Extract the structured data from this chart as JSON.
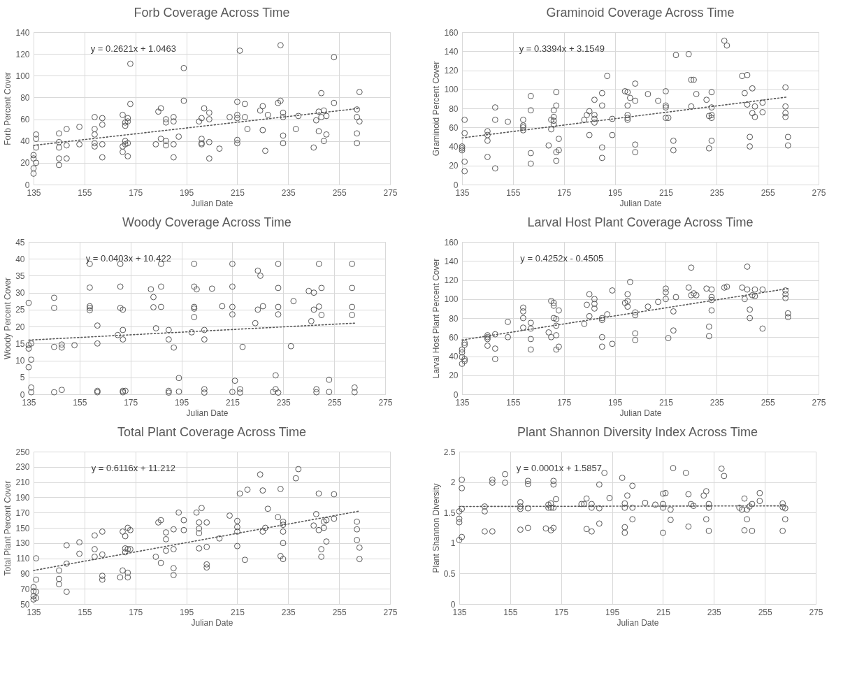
{
  "chart_data": [
    {
      "type": "scatter",
      "title": "Forb Coverage Across Time",
      "xlabel": "Julian Date",
      "ylabel": "Forb Percent Cover",
      "xlim": [
        135,
        275
      ],
      "xticks": [
        135,
        155,
        175,
        195,
        215,
        235,
        255,
        275
      ],
      "ylim": [
        0,
        140
      ],
      "yticks": [
        0,
        20,
        40,
        60,
        80,
        100,
        120,
        140
      ],
      "grid": true,
      "annotations": [
        "y = 0.2621x + 1.0463"
      ],
      "series": [
        {
          "marker": "circle",
          "color": "#595959",
          "x": [
            135,
            135,
            135,
            135,
            136,
            136,
            136,
            136,
            145,
            145,
            145,
            145,
            145,
            148,
            148,
            148,
            153,
            153,
            159,
            159,
            159,
            159,
            159,
            162,
            162,
            162,
            162,
            170,
            170,
            170,
            171,
            171,
            171,
            171,
            172,
            172,
            172,
            172,
            173,
            173,
            183,
            184,
            185,
            185,
            187,
            187,
            187,
            187,
            190,
            190,
            190,
            190,
            192,
            194,
            194,
            200,
            201,
            201,
            201,
            201,
            202,
            204,
            204,
            204,
            204,
            208,
            212,
            215,
            215,
            215,
            215,
            215,
            216,
            218,
            218,
            219,
            224,
            225,
            225,
            226,
            227,
            231,
            232,
            232,
            233,
            233,
            233,
            233,
            238,
            239,
            245,
            246,
            247,
            247,
            248,
            248,
            249,
            249,
            250,
            250,
            253,
            253,
            262,
            262,
            262,
            262,
            263,
            263
          ],
          "values": [
            27,
            24,
            15,
            10,
            46,
            42,
            34,
            20,
            47,
            39,
            34,
            24,
            18,
            51,
            36,
            24,
            53,
            37,
            62,
            51,
            46,
            38,
            35,
            61,
            55,
            37,
            25,
            64,
            35,
            30,
            57,
            54,
            40,
            37,
            61,
            58,
            38,
            26,
            111,
            74,
            37,
            67,
            70,
            42,
            60,
            57,
            40,
            36,
            62,
            58,
            37,
            25,
            44,
            107,
            77,
            58,
            61,
            42,
            38,
            37,
            70,
            66,
            60,
            39,
            24,
            33,
            62,
            76,
            64,
            61,
            41,
            38,
            123,
            74,
            62,
            51,
            68,
            72,
            50,
            31,
            64,
            75,
            128,
            77,
            66,
            62,
            45,
            38,
            51,
            63,
            34,
            59,
            67,
            49,
            84,
            62,
            68,
            40,
            63,
            46,
            117,
            75,
            69,
            62,
            47,
            38,
            85,
            58
          ]
        },
        {
          "type": "line",
          "marker": "none",
          "line_style": "dotted",
          "color": "#595959",
          "x": [
            135,
            263
          ],
          "values": [
            36,
            70
          ]
        }
      ]
    },
    {
      "type": "scatter",
      "title": "Graminoid Coverage Across Time",
      "xlabel": "Julian Date",
      "ylabel": "Graminoid Percent Cover",
      "xlim": [
        135,
        275
      ],
      "xticks": [
        135,
        155,
        175,
        195,
        215,
        235,
        255,
        275
      ],
      "ylim": [
        0,
        160
      ],
      "yticks": [
        0,
        20,
        40,
        60,
        80,
        100,
        120,
        140,
        160
      ],
      "grid": true,
      "annotations": [
        "y = 0.3394x + 3.1549"
      ],
      "series": [
        {
          "marker": "circle",
          "color": "#595959",
          "x": [
            135,
            135,
            135,
            136,
            136,
            136,
            136,
            145,
            145,
            145,
            145,
            148,
            148,
            148,
            153,
            159,
            159,
            159,
            159,
            162,
            162,
            162,
            162,
            169,
            170,
            170,
            171,
            171,
            171,
            171,
            172,
            172,
            172,
            172,
            173,
            173,
            183,
            184,
            185,
            185,
            187,
            187,
            187,
            187,
            190,
            190,
            190,
            190,
            192,
            194,
            194,
            199,
            200,
            200,
            200,
            200,
            200,
            201,
            203,
            203,
            203,
            203,
            208,
            212,
            215,
            215,
            215,
            215,
            216,
            218,
            218,
            219,
            224,
            225,
            225,
            226,
            227,
            231,
            232,
            232,
            233,
            233,
            233,
            233,
            233,
            238,
            239,
            245,
            246,
            247,
            247,
            248,
            248,
            249,
            249,
            250,
            250,
            253,
            253,
            262,
            262,
            262,
            262,
            263,
            263
          ],
          "values": [
            40,
            38,
            36,
            68,
            54,
            24,
            14,
            56,
            52,
            46,
            29,
            81,
            68,
            17,
            66,
            68,
            62,
            60,
            57,
            93,
            78,
            33,
            22,
            41,
            68,
            58,
            78,
            71,
            67,
            63,
            97,
            83,
            34,
            25,
            48,
            36,
            68,
            73,
            77,
            52,
            89,
            73,
            69,
            65,
            96,
            83,
            39,
            28,
            114,
            69,
            52,
            98,
            97,
            83,
            73,
            70,
            68,
            91,
            106,
            88,
            42,
            34,
            95,
            88,
            98,
            83,
            81,
            70,
            70,
            46,
            36,
            136,
            137,
            110,
            82,
            110,
            95,
            89,
            72,
            38,
            97,
            81,
            73,
            70,
            46,
            151,
            146,
            114,
            96,
            115,
            84,
            50,
            40,
            101,
            75,
            82,
            71,
            86,
            76,
            102,
            82,
            75,
            71,
            50,
            41
          ]
        },
        {
          "type": "line",
          "marker": "none",
          "line_style": "dotted",
          "color": "#595959",
          "x": [
            135,
            263
          ],
          "values": [
            49,
            92
          ]
        }
      ]
    },
    {
      "type": "scatter",
      "title": "Woody Coverage Across Time",
      "xlabel": "Julian Date",
      "ylabel": "Woody Percent Cover",
      "xlim": [
        135,
        275
      ],
      "xticks": [
        135,
        155,
        175,
        195,
        215,
        235,
        255,
        275
      ],
      "ylim": [
        0,
        45
      ],
      "yticks": [
        0,
        5,
        10,
        15,
        20,
        25,
        30,
        35,
        40,
        45
      ],
      "grid": true,
      "annotations": [
        "y = 0.0403x + 10.422"
      ],
      "series": [
        {
          "marker": "circle",
          "color": "#595959",
          "x": [
            135,
            135,
            135,
            135,
            136,
            136,
            136,
            136,
            145,
            145,
            145,
            145,
            148,
            148,
            148,
            153,
            159,
            159,
            159,
            159,
            159,
            162,
            162,
            162,
            162,
            170,
            171,
            171,
            171,
            172,
            172,
            172,
            172,
            172,
            173,
            183,
            184,
            184,
            185,
            187,
            187,
            187,
            190,
            190,
            190,
            190,
            192,
            194,
            194,
            199,
            200,
            200,
            200,
            200,
            200,
            201,
            204,
            204,
            204,
            204,
            207,
            211,
            215,
            215,
            215,
            215,
            215,
            216,
            218,
            218,
            219,
            224,
            225,
            225,
            226,
            227,
            231,
            232,
            232,
            233,
            233,
            233,
            233,
            233,
            238,
            239,
            245,
            246,
            247,
            247,
            248,
            248,
            249,
            249,
            250,
            250,
            253,
            253,
            262,
            262,
            262,
            262,
            263,
            263
          ],
          "values": [
            27,
            14.5,
            13.5,
            8,
            15,
            10.2,
            2,
            0.6,
            28.5,
            25.5,
            14,
            0.6,
            14.7,
            13.8,
            1.3,
            14.5,
            38.5,
            31.5,
            26,
            25.5,
            24.8,
            20.3,
            15,
            1,
            0.6,
            17.5,
            38.5,
            31.8,
            25.5,
            25,
            19,
            16.2,
            1,
            0.6,
            1,
            31,
            25.7,
            28.7,
            19.5,
            38.5,
            31.8,
            25.8,
            19,
            16.2,
            1,
            0.5,
            13.8,
            4.8,
            0.8,
            18.3,
            38.5,
            31.8,
            25.8,
            25.3,
            22.8,
            31,
            19,
            16.2,
            1.5,
            0.5,
            31.2,
            26,
            38.5,
            31.8,
            25.8,
            23.6,
            0.7,
            4,
            1.5,
            0.5,
            14,
            21,
            36.5,
            25,
            35,
            26,
            0.7,
            5.6,
            1.5,
            38.5,
            31.4,
            25.8,
            23.6,
            0.5,
            14.2,
            27.5,
            30.5,
            21.6,
            30,
            25,
            1.5,
            0.6,
            38.5,
            25.9,
            31.4,
            23.4,
            4.3,
            0.7,
            38.5,
            31.4,
            25.8,
            23.4,
            2,
            0.6
          ]
        },
        {
          "type": "line",
          "marker": "none",
          "line_style": "dotted",
          "color": "#595959",
          "x": [
            135,
            263
          ],
          "values": [
            16,
            21
          ]
        }
      ]
    },
    {
      "type": "scatter",
      "title": "Larval Host Plant Coverage Across Time",
      "xlabel": "Julian Date",
      "ylabel": "Larval Host Plant Percent Cover",
      "xlim": [
        135,
        275
      ],
      "xticks": [
        135,
        155,
        175,
        195,
        215,
        235,
        255,
        275
      ],
      "ylim": [
        0,
        160
      ],
      "yticks": [
        0,
        20,
        40,
        60,
        80,
        100,
        120,
        140,
        160
      ],
      "grid": true,
      "annotations": [
        "y = 0.4252x - 0.4505"
      ],
      "series": [
        {
          "marker": "circle",
          "color": "#595959",
          "x": [
            135,
            135,
            135,
            135,
            136,
            136,
            136,
            136,
            145,
            145,
            145,
            145,
            148,
            148,
            148,
            153,
            153,
            159,
            159,
            159,
            159,
            162,
            162,
            162,
            162,
            169,
            170,
            170,
            171,
            171,
            171,
            172,
            172,
            172,
            172,
            173,
            173,
            183,
            184,
            185,
            185,
            187,
            187,
            187,
            190,
            190,
            190,
            190,
            192,
            194,
            194,
            199,
            200,
            200,
            200,
            201,
            203,
            203,
            203,
            203,
            208,
            212,
            215,
            215,
            215,
            216,
            218,
            218,
            219,
            224,
            225,
            225,
            226,
            227,
            231,
            232,
            232,
            233,
            233,
            233,
            233,
            238,
            239,
            245,
            246,
            247,
            247,
            248,
            248,
            249,
            250,
            250,
            253,
            253,
            262,
            262,
            262,
            263,
            263
          ],
          "values": [
            47,
            44,
            39,
            32,
            54,
            52,
            37,
            35,
            62,
            60,
            58,
            51,
            63,
            48,
            37,
            76,
            60,
            91,
            87,
            80,
            70,
            75,
            69,
            58,
            47,
            65,
            98,
            60,
            96,
            93,
            80,
            79,
            72,
            62,
            47,
            88,
            50,
            74,
            94,
            105,
            82,
            100,
            95,
            90,
            80,
            78,
            60,
            50,
            84,
            109,
            53,
            96,
            105,
            98,
            92,
            118,
            86,
            83,
            64,
            57,
            92,
            97,
            111,
            107,
            100,
            59,
            87,
            67,
            102,
            112,
            133,
            104,
            106,
            104,
            111,
            71,
            61,
            110,
            102,
            99,
            88,
            112,
            113,
            112,
            100,
            134,
            110,
            89,
            80,
            104,
            110,
            103,
            110,
            69,
            109,
            105,
            101,
            85,
            81
          ]
        },
        {
          "type": "line",
          "marker": "none",
          "line_style": "dotted",
          "color": "#595959",
          "x": [
            135,
            263
          ],
          "values": [
            57,
            111
          ]
        }
      ]
    },
    {
      "type": "scatter",
      "title": "Total Plant Coverage Across Time",
      "xlabel": "Julian Date",
      "ylabel": "Total Plant Percent Cover",
      "xlim": [
        135,
        275
      ],
      "xticks": [
        135,
        155,
        175,
        195,
        215,
        235,
        255,
        275
      ],
      "ylim": [
        50,
        250
      ],
      "yticks": [
        50,
        70,
        90,
        110,
        130,
        150,
        170,
        190,
        210,
        230,
        250
      ],
      "grid": true,
      "annotations": [
        "y = 0.6116x + 11.212"
      ],
      "series": [
        {
          "marker": "circle",
          "color": "#595959",
          "x": [
            135,
            135,
            135,
            135,
            136,
            136,
            136,
            136,
            145,
            145,
            145,
            148,
            148,
            148,
            153,
            153,
            159,
            159,
            159,
            162,
            162,
            162,
            162,
            169,
            170,
            170,
            171,
            171,
            171,
            172,
            172,
            172,
            172,
            173,
            173,
            183,
            184,
            185,
            185,
            187,
            187,
            187,
            190,
            190,
            190,
            190,
            192,
            194,
            194,
            199,
            200,
            200,
            200,
            200,
            201,
            203,
            203,
            203,
            203,
            208,
            212,
            215,
            215,
            215,
            215,
            216,
            218,
            219,
            224,
            225,
            225,
            226,
            227,
            231,
            232,
            232,
            233,
            233,
            233,
            233,
            233,
            238,
            239,
            245,
            246,
            247,
            247,
            248,
            248,
            249,
            249,
            250,
            250,
            253,
            253,
            262,
            262,
            262,
            263,
            263
          ],
          "values": [
            72,
            67,
            60,
            56,
            110,
            82,
            66,
            58,
            94,
            83,
            76,
            127,
            103,
            66,
            131,
            116,
            140,
            122,
            112,
            145,
            115,
            87,
            82,
            85,
            145,
            94,
            139,
            123,
            118,
            150,
            122,
            91,
            85,
            147,
            122,
            112,
            157,
            160,
            104,
            144,
            135,
            120,
            148,
            122,
            97,
            88,
            170,
            160,
            147,
            170,
            157,
            149,
            143,
            123,
            176,
            157,
            125,
            102,
            98,
            136,
            166,
            159,
            151,
            145,
            126,
            195,
            108,
            200,
            220,
            199,
            145,
            150,
            175,
            164,
            201,
            113,
            158,
            154,
            145,
            130,
            109,
            215,
            227,
            153,
            168,
            195,
            147,
            122,
            112,
            158,
            150,
            160,
            132,
            194,
            162,
            158,
            148,
            134,
            124,
            109
          ]
        },
        {
          "type": "line",
          "marker": "none",
          "line_style": "dotted",
          "color": "#595959",
          "x": [
            135,
            263
          ],
          "values": [
            94,
            172
          ]
        }
      ]
    },
    {
      "type": "scatter",
      "title": "Plant Shannon Diversity Index Across Time",
      "xlabel": "Julian Date",
      "ylabel": "Plant Shannon Diversity",
      "xlim": [
        135,
        275
      ],
      "xticks": [
        135,
        155,
        175,
        195,
        215,
        235,
        255,
        275
      ],
      "ylim": [
        0,
        2.5
      ],
      "yticks": [
        0,
        0.5,
        1,
        1.5,
        2,
        2.5
      ],
      "grid": true,
      "annotations": [
        "y = 0.0001x + 1.5857"
      ],
      "series": [
        {
          "marker": "circle",
          "color": "#595959",
          "x": [
            135,
            135,
            135,
            135,
            136,
            136,
            136,
            136,
            145,
            145,
            145,
            148,
            148,
            148,
            153,
            153,
            159,
            159,
            159,
            159,
            162,
            162,
            162,
            162,
            169,
            170,
            170,
            171,
            171,
            171,
            172,
            172,
            172,
            172,
            173,
            183,
            184,
            185,
            185,
            187,
            187,
            187,
            190,
            190,
            190,
            192,
            194,
            199,
            200,
            200,
            200,
            200,
            201,
            203,
            203,
            203,
            208,
            212,
            215,
            215,
            215,
            215,
            216,
            218,
            218,
            219,
            224,
            225,
            225,
            226,
            227,
            231,
            232,
            232,
            233,
            233,
            233,
            238,
            239,
            245,
            246,
            247,
            247,
            248,
            248,
            249,
            250,
            250,
            253,
            253,
            262,
            262,
            262,
            263,
            263
          ],
          "values": [
            1.52,
            1.4,
            1.34,
            1.05,
            2.04,
            1.9,
            1.56,
            1.1,
            1.6,
            1.52,
            1.19,
            2.04,
            1.99,
            1.19,
            2.13,
            1.99,
            1.67,
            1.6,
            1.56,
            1.22,
            2.02,
            1.97,
            1.57,
            1.25,
            1.24,
            1.63,
            1.58,
            1.65,
            1.21,
            1.58,
            2.02,
            1.96,
            1.58,
            1.25,
            1.72,
            1.64,
            1.64,
            1.73,
            1.23,
            1.64,
            1.58,
            1.19,
            1.96,
            1.57,
            1.32,
            2.15,
            1.74,
            2.07,
            1.65,
            1.58,
            1.26,
            1.17,
            1.78,
            1.94,
            1.58,
            1.39,
            1.66,
            1.63,
            1.81,
            1.64,
            1.58,
            1.17,
            1.82,
            1.55,
            1.38,
            2.23,
            2.15,
            1.8,
            1.27,
            1.64,
            1.61,
            1.78,
            1.85,
            1.39,
            1.64,
            1.58,
            1.2,
            2.22,
            2.1,
            1.58,
            1.55,
            1.73,
            1.21,
            1.55,
            1.39,
            1.6,
            1.64,
            1.2,
            1.82,
            1.69,
            1.65,
            1.59,
            1.2,
            1.57,
            1.39
          ]
        },
        {
          "type": "line",
          "marker": "none",
          "line_style": "dotted",
          "color": "#595959",
          "x": [
            135,
            263
          ],
          "values": [
            1.6,
            1.61
          ]
        }
      ]
    }
  ]
}
